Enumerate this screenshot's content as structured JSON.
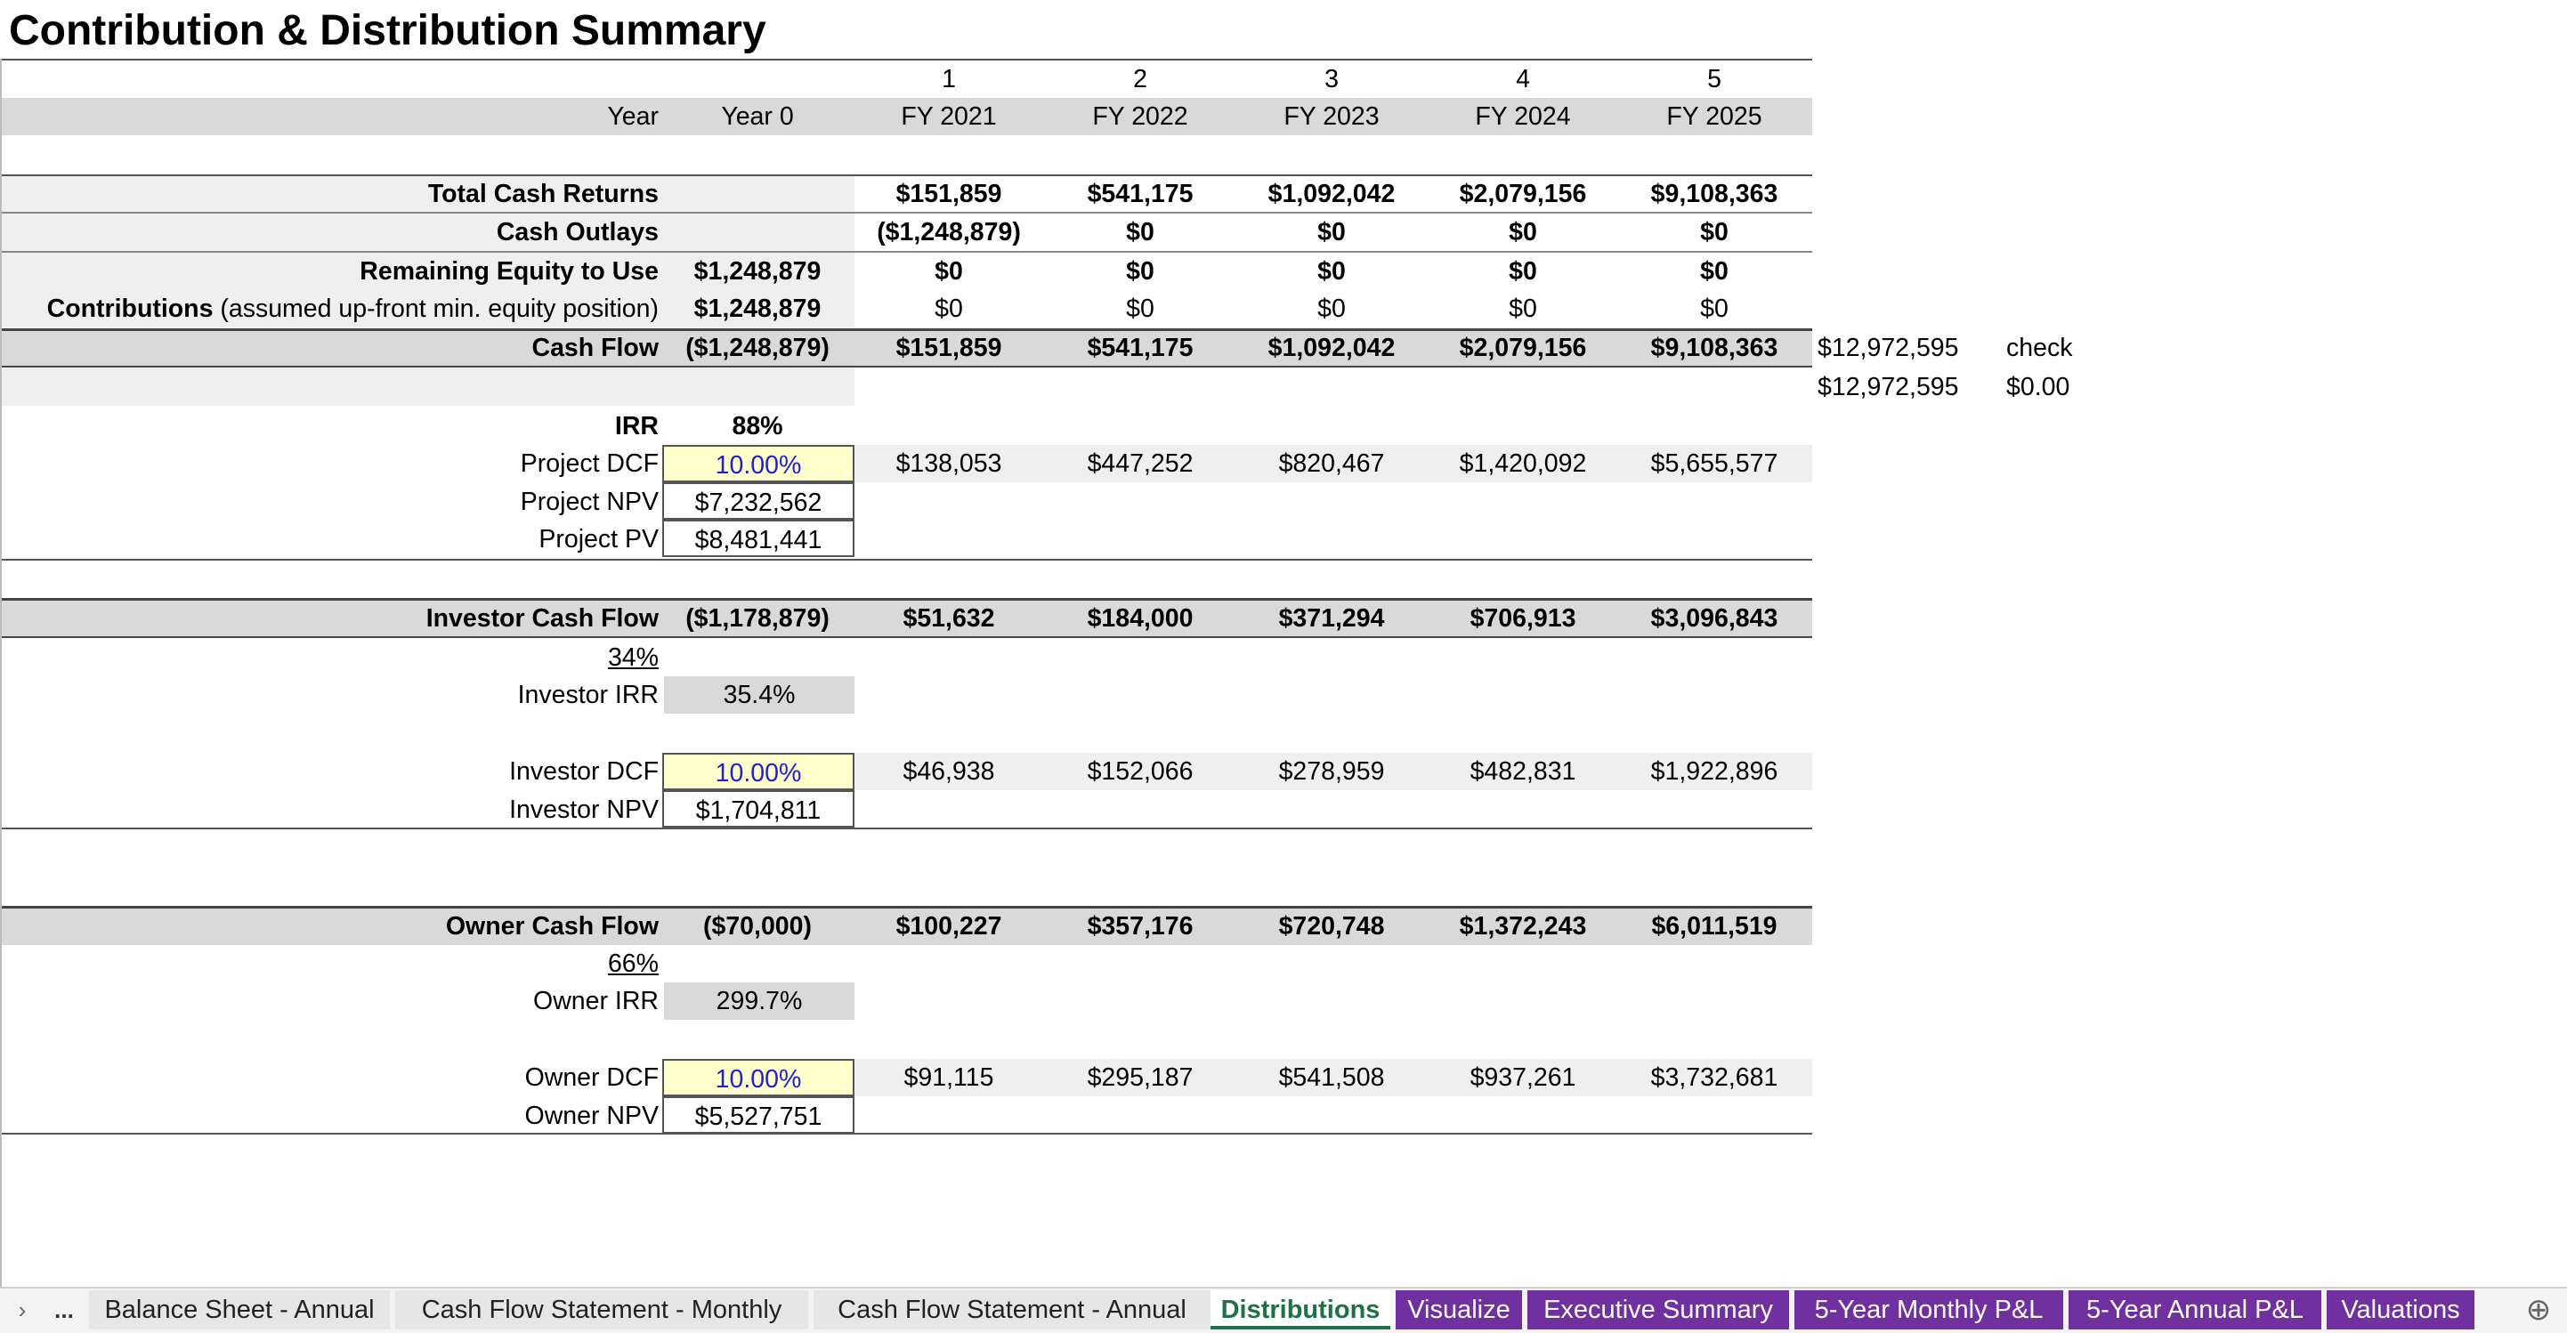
{
  "title": "Contribution & Distribution Summary",
  "header": {
    "period_numbers": [
      "1",
      "2",
      "3",
      "4",
      "5"
    ],
    "year_label": "Year",
    "year0": "Year 0",
    "fiscal_years": [
      "FY 2021",
      "FY 2022",
      "FY 2023",
      "FY 2024",
      "FY 2025"
    ]
  },
  "rows": {
    "total_cash_returns": {
      "label": "Total Cash Returns",
      "year0": "",
      "values": [
        "$151,859",
        "$541,175",
        "$1,092,042",
        "$2,079,156",
        "$9,108,363"
      ]
    },
    "cash_outlays": {
      "label": "Cash Outlays",
      "year0": "",
      "values": [
        "($1,248,879)",
        "$0",
        "$0",
        "$0",
        "$0"
      ]
    },
    "remaining_equity": {
      "label": "Remaining Equity to Use",
      "year0": "$1,248,879",
      "values": [
        "$0",
        "$0",
        "$0",
        "$0",
        "$0"
      ]
    },
    "contributions": {
      "label_bold": "Contributions",
      "label_note": " (assumed up-front min. equity position)",
      "year0": "$1,248,879",
      "values": [
        "$0",
        "$0",
        "$0",
        "$0",
        "$0"
      ]
    },
    "cash_flow": {
      "label": "Cash Flow",
      "year0": "($1,248,879)",
      "values": [
        "$151,859",
        "$541,175",
        "$1,092,042",
        "$2,079,156",
        "$9,108,363"
      ],
      "total": "$12,972,595",
      "check_label": "check"
    },
    "check_row": {
      "total": "$12,972,595",
      "diff": "$0.00"
    }
  },
  "project": {
    "irr_label": "IRR",
    "irr_value": "88%",
    "dcf_label": "Project DCF",
    "dcf_rate": "10.00%",
    "dcf_values": [
      "$138,053",
      "$447,252",
      "$820,467",
      "$1,420,092",
      "$5,655,577"
    ],
    "npv_label": "Project NPV",
    "npv_value": "$7,232,562",
    "pv_label": "Project PV",
    "pv_value": "$8,481,441"
  },
  "investor": {
    "cf_label": "Investor Cash Flow",
    "cf_year0": "($1,178,879)",
    "cf_values": [
      "$51,632",
      "$184,000",
      "$371,294",
      "$706,913",
      "$3,096,843"
    ],
    "share": "34%",
    "irr_label": "Investor IRR",
    "irr_value": "35.4%",
    "dcf_label": "Investor DCF",
    "dcf_rate": "10.00%",
    "dcf_values": [
      "$46,938",
      "$152,066",
      "$278,959",
      "$482,831",
      "$1,922,896"
    ],
    "npv_label": "Investor NPV",
    "npv_value": "$1,704,811"
  },
  "owner": {
    "cf_label": "Owner Cash Flow",
    "cf_year0": "($70,000)",
    "cf_values": [
      "$100,227",
      "$357,176",
      "$720,748",
      "$1,372,243",
      "$6,011,519"
    ],
    "share": "66%",
    "irr_label": "Owner IRR",
    "irr_value": "299.7%",
    "dcf_label": "Owner DCF",
    "dcf_rate": "10.00%",
    "dcf_values": [
      "$91,115",
      "$295,187",
      "$541,508",
      "$937,261",
      "$3,732,681"
    ],
    "npv_label": "Owner NPV",
    "npv_value": "$5,527,751"
  },
  "tabs": {
    "nav_prev_icon": "›",
    "ellipsis": "...",
    "items": [
      {
        "label": "Balance Sheet - Annual",
        "style": "normal"
      },
      {
        "label": "Cash Flow Statement - Monthly",
        "style": "normal"
      },
      {
        "label": "Cash Flow Statement - Annual",
        "style": "normal"
      },
      {
        "label": "Distributions",
        "style": "active"
      },
      {
        "label": "Visualize",
        "style": "purple"
      },
      {
        "label": "Executive Summary",
        "style": "purple"
      },
      {
        "label": "5-Year Monthly P&L",
        "style": "purple"
      },
      {
        "label": "5-Year Annual P&L",
        "style": "purple"
      },
      {
        "label": "Valuations",
        "style": "purple"
      }
    ],
    "add_icon": "⊕"
  },
  "colors": {
    "band_grey": "#d9d9d9",
    "light_grey": "#efefef",
    "input_yellow": "#ffffcc",
    "input_blue": "#1f1fd6",
    "tab_purple": "#7030a0",
    "active_green": "#1e7145"
  }
}
